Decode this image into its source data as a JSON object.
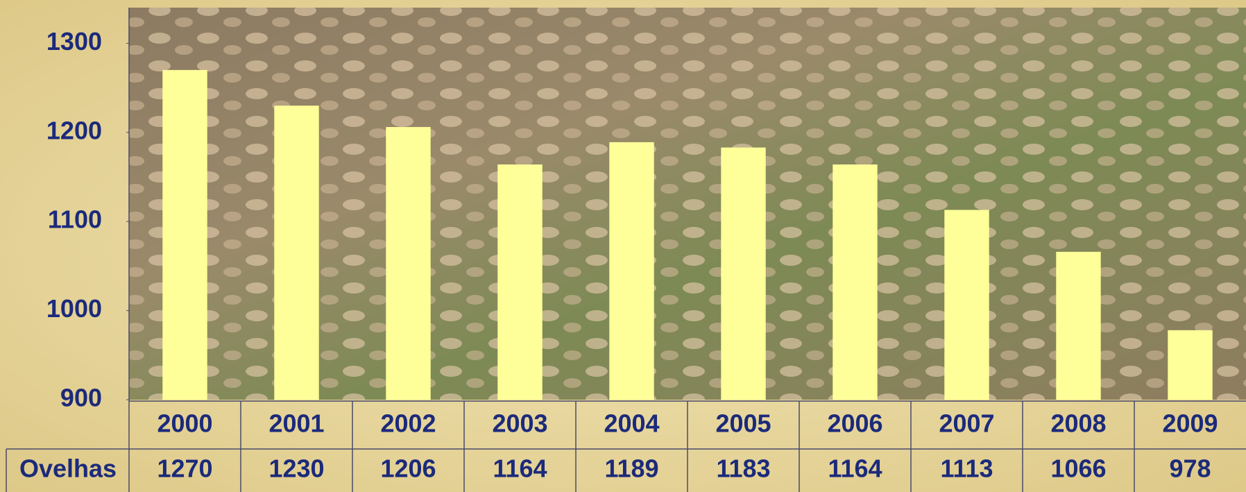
{
  "chart_data": {
    "type": "bar",
    "categories": [
      "2000",
      "2001",
      "2002",
      "2003",
      "2004",
      "2005",
      "2006",
      "2007",
      "2008",
      "2009"
    ],
    "series": [
      {
        "name": "Ovelhas",
        "color": "#ffff99",
        "values": [
          1270,
          1230,
          1206,
          1164,
          1189,
          1183,
          1164,
          1113,
          1066,
          978
        ]
      }
    ],
    "ylim": [
      900,
      1340
    ],
    "yticks": [
      900,
      1000,
      1100,
      1200,
      1300
    ],
    "grid": false
  }
}
